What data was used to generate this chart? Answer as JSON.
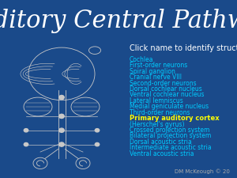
{
  "title": "Auditory Central Pathway",
  "subtitle": "Click name to identify structure",
  "background_color": "#1a4a8a",
  "title_color": "#ffffff",
  "subtitle_color": "#ffffff",
  "title_fontsize": 22,
  "subtitle_fontsize": 7,
  "link_color": "#00ccff",
  "bold_color": "#ffff00",
  "items": [
    "Cochlea",
    "First-order neurons",
    "Spiral ganglion",
    "Cranial nerve VIII",
    "Second-order neurons",
    "Dorsal cochlear nucleus",
    "Ventral cochlear nucleus",
    "Lateral lemniscus",
    "Medial geniculate nucleus",
    "Third-order neurons",
    "Primary auditory cortex",
    "(Herschel's gyrus)",
    "Crossed projection system",
    "Bilateral projection system",
    "Dorsal acoustic stria",
    "Intermediate acoustic stria",
    "Ventral acoustic stria"
  ],
  "bold_indices": [
    10
  ],
  "credit": "DM McKeough © 20",
  "credit_color": "#aaaaaa",
  "credit_fontsize": 5,
  "brain_color": "#c8c8c8",
  "diagram_lw": 0.6
}
